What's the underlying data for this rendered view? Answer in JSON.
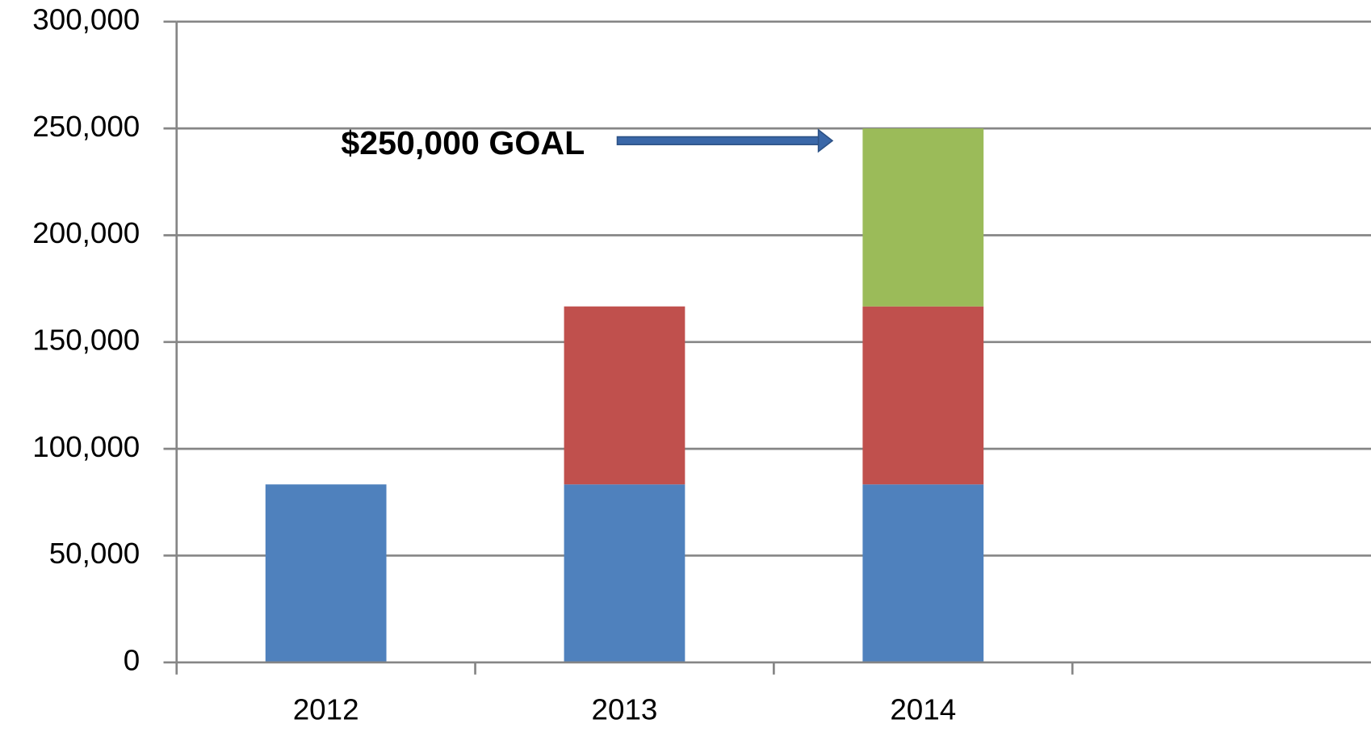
{
  "chart_data": {
    "type": "stacked_bar",
    "annotation": "$250,000 GOAL",
    "categories": [
      "2012",
      "2013",
      "2014",
      null
    ],
    "series": [
      {
        "color": "#4f81bd",
        "values": [
          83333,
          83333,
          83333,
          null
        ]
      },
      {
        "color": "#c0504d",
        "values": [
          null,
          83333,
          83333,
          null
        ]
      },
      {
        "color": "#9bbb59",
        "values": [
          null,
          null,
          83333,
          null
        ]
      }
    ],
    "ylim": [
      0,
      300000
    ],
    "yticks": [
      0,
      {
        "value": 50000,
        "label": "50,000"
      },
      {
        "value": 100000,
        "label": "100,000"
      },
      {
        "value": 150000,
        "label": "150,000"
      },
      {
        "value": 200000,
        "label": "200,000"
      },
      {
        "value": 250000,
        "label": "250,000"
      },
      {
        "value": 300000,
        "label": "300,000"
      }
    ],
    "grid": true
  }
}
